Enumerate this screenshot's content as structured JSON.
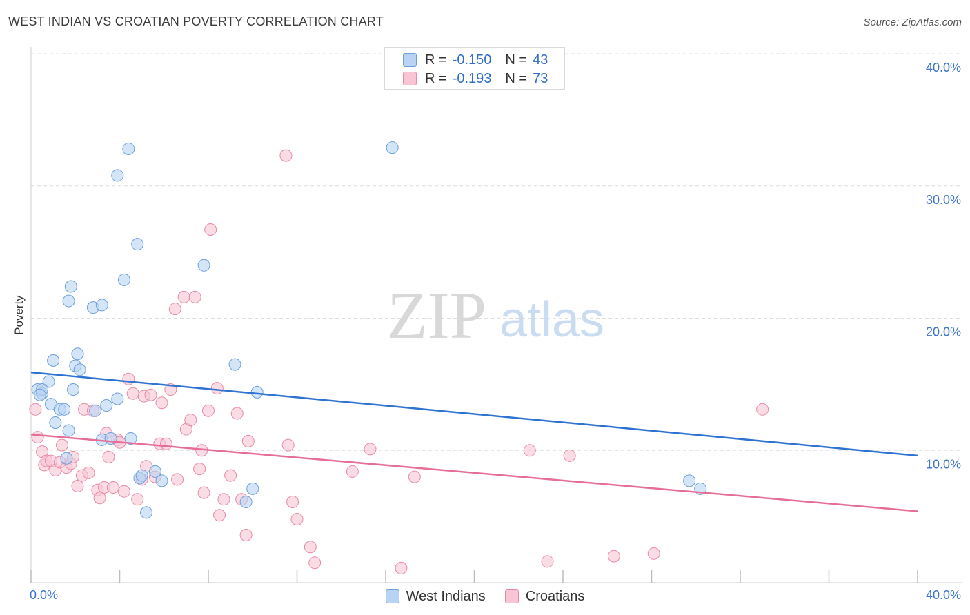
{
  "header": {
    "title": "WEST INDIAN VS CROATIAN POVERTY CORRELATION CHART",
    "source": "Source: ZipAtlas.com"
  },
  "watermark": {
    "zip": "ZIP",
    "atlas": "atlas"
  },
  "legend": {
    "rows": [
      {
        "r_label": "R =",
        "r_value": "-0.150",
        "n_label": "N =",
        "n_value": "43"
      },
      {
        "r_label": "R =",
        "r_value": "-0.193",
        "n_label": "N =",
        "n_value": "73"
      }
    ],
    "bottom": [
      "West Indians",
      "Croatians"
    ]
  },
  "colors": {
    "west_fill": "#b9d3f3",
    "west_stroke": "#6d9fdb",
    "west_line": "#2e72d2",
    "cro_fill": "#f7c5d4",
    "cro_stroke": "#e88aa7",
    "cro_line": "#e66d97",
    "axis_text": "#3b74c8",
    "grid": "#dedede"
  },
  "chart_data": {
    "type": "scatter",
    "title": "WEST INDIAN VS CROATIAN POVERTY CORRELATION CHART",
    "xlabel": "",
    "ylabel": "Poverty",
    "xlim": [
      0,
      40
    ],
    "ylim": [
      0,
      40
    ],
    "x_tick_labels": [
      "0.0%",
      "40.0%"
    ],
    "y_tick_labels": [
      "10.0%",
      "20.0%",
      "30.0%",
      "40.0%"
    ],
    "y_ticks": [
      10,
      20,
      30,
      40
    ],
    "grid": true,
    "series": [
      {
        "name": "West Indians",
        "r": -0.15,
        "n": 43,
        "trend": {
          "y_at_0": 15.9,
          "y_at_40": 9.6
        },
        "points": [
          [
            0.3,
            14.6
          ],
          [
            0.5,
            14.3
          ],
          [
            0.8,
            15.2
          ],
          [
            0.9,
            13.5
          ],
          [
            1.1,
            12.1
          ],
          [
            1.0,
            16.8
          ],
          [
            1.3,
            13.1
          ],
          [
            1.5,
            13.1
          ],
          [
            1.6,
            9.4
          ],
          [
            1.7,
            11.5
          ],
          [
            1.7,
            21.3
          ],
          [
            1.8,
            22.4
          ],
          [
            1.9,
            14.6
          ],
          [
            2.0,
            16.4
          ],
          [
            2.1,
            17.3
          ],
          [
            2.2,
            16.1
          ],
          [
            2.8,
            20.8
          ],
          [
            2.9,
            13.0
          ],
          [
            3.2,
            21.0
          ],
          [
            3.4,
            13.4
          ],
          [
            3.2,
            10.8
          ],
          [
            3.6,
            10.9
          ],
          [
            3.9,
            13.9
          ],
          [
            3.9,
            30.8
          ],
          [
            4.2,
            22.9
          ],
          [
            4.4,
            32.8
          ],
          [
            4.5,
            10.9
          ],
          [
            4.8,
            25.6
          ],
          [
            4.9,
            7.9
          ],
          [
            5.0,
            8.1
          ],
          [
            5.2,
            5.3
          ],
          [
            5.6,
            8.4
          ],
          [
            5.9,
            7.7
          ],
          [
            7.8,
            24.0
          ],
          [
            9.2,
            16.5
          ],
          [
            9.7,
            6.1
          ],
          [
            10.0,
            7.1
          ],
          [
            10.2,
            14.4
          ],
          [
            16.3,
            32.9
          ],
          [
            29.7,
            7.7
          ],
          [
            30.2,
            7.1
          ],
          [
            0.5,
            14.6
          ],
          [
            0.4,
            14.2
          ]
        ]
      },
      {
        "name": "Croatians",
        "r": -0.193,
        "n": 73,
        "trend": {
          "y_at_0": 11.2,
          "y_at_40": 5.4
        },
        "points": [
          [
            0.2,
            13.1
          ],
          [
            0.3,
            11.0
          ],
          [
            0.5,
            9.9
          ],
          [
            0.6,
            8.9
          ],
          [
            0.7,
            9.2
          ],
          [
            0.9,
            9.2
          ],
          [
            1.1,
            8.5
          ],
          [
            1.3,
            9.1
          ],
          [
            1.4,
            10.4
          ],
          [
            1.6,
            8.7
          ],
          [
            1.8,
            9.0
          ],
          [
            1.9,
            9.5
          ],
          [
            2.1,
            7.3
          ],
          [
            2.3,
            8.1
          ],
          [
            2.4,
            13.1
          ],
          [
            2.6,
            8.3
          ],
          [
            2.8,
            13.0
          ],
          [
            3.0,
            7.0
          ],
          [
            3.1,
            6.4
          ],
          [
            3.3,
            7.2
          ],
          [
            3.4,
            11.3
          ],
          [
            3.5,
            9.5
          ],
          [
            3.7,
            7.2
          ],
          [
            3.9,
            10.8
          ],
          [
            4.0,
            10.6
          ],
          [
            4.2,
            6.9
          ],
          [
            4.4,
            15.4
          ],
          [
            4.6,
            14.3
          ],
          [
            4.8,
            6.3
          ],
          [
            5.0,
            7.8
          ],
          [
            5.1,
            14.1
          ],
          [
            5.2,
            8.8
          ],
          [
            5.4,
            14.2
          ],
          [
            5.6,
            8.0
          ],
          [
            5.8,
            10.5
          ],
          [
            5.9,
            13.6
          ],
          [
            6.1,
            10.5
          ],
          [
            6.3,
            14.6
          ],
          [
            6.5,
            20.7
          ],
          [
            6.6,
            7.8
          ],
          [
            6.9,
            21.6
          ],
          [
            7.0,
            11.6
          ],
          [
            7.2,
            12.3
          ],
          [
            7.4,
            21.6
          ],
          [
            7.6,
            8.6
          ],
          [
            7.7,
            10.0
          ],
          [
            7.8,
            6.8
          ],
          [
            8.0,
            13.0
          ],
          [
            8.1,
            26.7
          ],
          [
            8.4,
            14.7
          ],
          [
            8.5,
            5.1
          ],
          [
            8.7,
            6.3
          ],
          [
            9.0,
            8.1
          ],
          [
            9.3,
            12.8
          ],
          [
            9.5,
            6.3
          ],
          [
            9.7,
            3.6
          ],
          [
            9.8,
            10.7
          ],
          [
            11.5,
            32.3
          ],
          [
            11.6,
            10.4
          ],
          [
            11.8,
            6.1
          ],
          [
            12.0,
            4.8
          ],
          [
            12.6,
            2.7
          ],
          [
            12.8,
            1.5
          ],
          [
            14.5,
            8.4
          ],
          [
            15.3,
            10.1
          ],
          [
            16.7,
            1.1
          ],
          [
            17.3,
            8.0
          ],
          [
            22.5,
            10.0
          ],
          [
            23.3,
            1.6
          ],
          [
            24.3,
            9.6
          ],
          [
            26.3,
            2.0
          ],
          [
            28.1,
            2.2
          ],
          [
            33.0,
            13.1
          ]
        ]
      }
    ]
  }
}
